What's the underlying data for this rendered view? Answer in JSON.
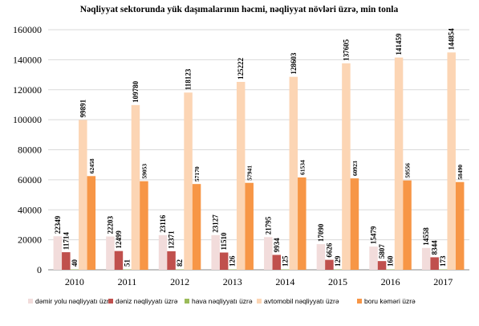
{
  "chart_data": {
    "type": "bar",
    "title": "Nəqliyyat  sektorunda yük daşımalarının həcmi, nəqliyyat  növləri üzrə, min tonla",
    "categories": [
      "2010",
      "2011",
      "2012",
      "2013",
      "2014",
      "2015",
      "2016",
      "2017"
    ],
    "ylim": [
      0,
      160000
    ],
    "yticks": [
      0,
      20000,
      40000,
      60000,
      80000,
      100000,
      120000,
      140000,
      160000
    ],
    "grid": true,
    "legend_position": "bottom",
    "series": [
      {
        "name": "dəmir yolu nəqliyyatı üzrə",
        "color": "#f2dcdb",
        "values": [
          22349,
          22203,
          23116,
          23127,
          21795,
          17090,
          15479,
          14558
        ]
      },
      {
        "name": "dəniz nəqliyyatı üzrə",
        "color": "#c0504d",
        "values": [
          11714,
          12499,
          12371,
          11510,
          9934,
          6626,
          5807,
          8344
        ]
      },
      {
        "name": "hava nəqliyyatı üzrə",
        "color": "#9bbb59",
        "values": [
          40,
          51,
          82,
          126,
          125,
          129,
          160,
          173
        ]
      },
      {
        "name": "avtomobil nəqliyyatı üzrə",
        "color": "#fcd5b4",
        "values": [
          99891,
          109780,
          118123,
          125222,
          128603,
          137605,
          141459,
          144854
        ]
      },
      {
        "name": "boru kəməri üzrə",
        "color": "#f79646",
        "values": [
          62458,
          59053,
          57170,
          57941,
          61534,
          60923,
          59556,
          58490
        ]
      }
    ]
  }
}
